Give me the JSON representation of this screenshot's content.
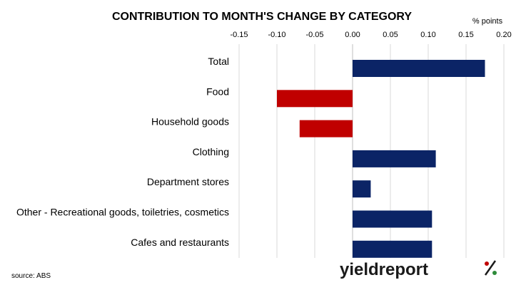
{
  "colors": {
    "positive": "#0b2466",
    "negative": "#c00000",
    "logo_percent_top": "#c00000",
    "logo_percent_bottom": "#2e8b3a"
  },
  "chart_data": {
    "type": "bar",
    "orientation": "horizontal",
    "title": "CONTRIBUTION TO MONTH'S CHANGE BY CATEGORY",
    "units_label": "% points",
    "axis_position": "top",
    "xlim": [
      -0.15,
      0.2
    ],
    "tick_values": [
      -0.15,
      -0.1,
      -0.05,
      0.0,
      0.05,
      0.1,
      0.15,
      0.2
    ],
    "tick_labels": [
      "-0.15",
      "-0.10",
      "-0.05",
      "0.00",
      "0.05",
      "0.10",
      "0.15",
      "0.20"
    ],
    "grid": true,
    "categories": [
      "Total",
      "Food",
      "Household goods",
      "Clothing",
      "Department stores",
      "Other - Recreational goods, toiletries, cosmetics",
      "Cafes and restaurants"
    ],
    "values": [
      0.175,
      -0.1,
      -0.07,
      0.11,
      0.024,
      0.105,
      0.105
    ]
  },
  "source": "source: ABS",
  "logo": {
    "text": "yieldreport",
    "symbol": "%"
  }
}
